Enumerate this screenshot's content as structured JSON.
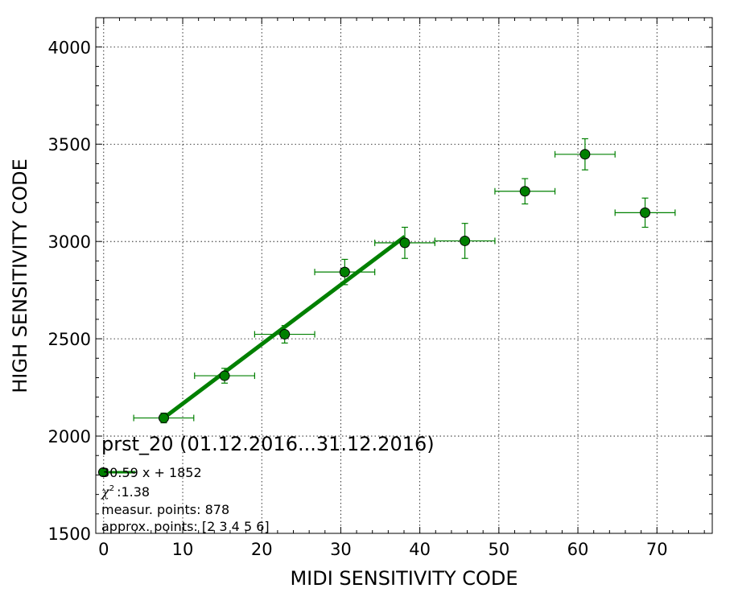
{
  "chart_data": {
    "type": "scatter",
    "title": "prst_20 (01.12.2016...31.12.2016)",
    "xlabel": "MIDI SENSITIVITY CODE",
    "ylabel": "HIGH SENSITIVITY CODE",
    "xlim": [
      -1,
      77
    ],
    "ylim": [
      1500,
      4150
    ],
    "xticks": [
      0,
      10,
      20,
      30,
      40,
      50,
      60,
      70
    ],
    "yticks": [
      1500,
      2000,
      2500,
      3000,
      3500,
      4000
    ],
    "grid": true,
    "series": [
      {
        "type": "errorbar",
        "color": "#008000",
        "marker": "circle",
        "points": [
          {
            "x": 7.6,
            "y": 2093,
            "xerr": 3.8,
            "yerr": 25
          },
          {
            "x": 15.3,
            "y": 2310,
            "xerr": 3.8,
            "yerr": 38
          },
          {
            "x": 22.9,
            "y": 2523,
            "xerr": 3.8,
            "yerr": 45
          },
          {
            "x": 30.5,
            "y": 2843,
            "xerr": 3.8,
            "yerr": 65
          },
          {
            "x": 38.1,
            "y": 2993,
            "xerr": 3.8,
            "yerr": 80
          },
          {
            "x": 45.7,
            "y": 3003,
            "xerr": 3.8,
            "yerr": 90
          },
          {
            "x": 53.3,
            "y": 3258,
            "xerr": 3.8,
            "yerr": 65
          },
          {
            "x": 60.9,
            "y": 3448,
            "xerr": 3.8,
            "yerr": 80
          },
          {
            "x": 68.5,
            "y": 3148,
            "xerr": 3.8,
            "yerr": 75
          }
        ]
      },
      {
        "type": "line",
        "color": "#008000",
        "x": [
          7.6,
          38.1
        ],
        "y": [
          2093,
          3025
        ]
      }
    ],
    "legend": {
      "placement": "lower-left",
      "entry": "30.59 x + 1852"
    },
    "annotations": {
      "chi2_symbol": "χ",
      "chi2_sup": "2",
      "chi2_value": ":1.38",
      "measur_points": "measur. points: 878",
      "approx_points": "approx. points: [2 3 4 5 6]"
    }
  }
}
